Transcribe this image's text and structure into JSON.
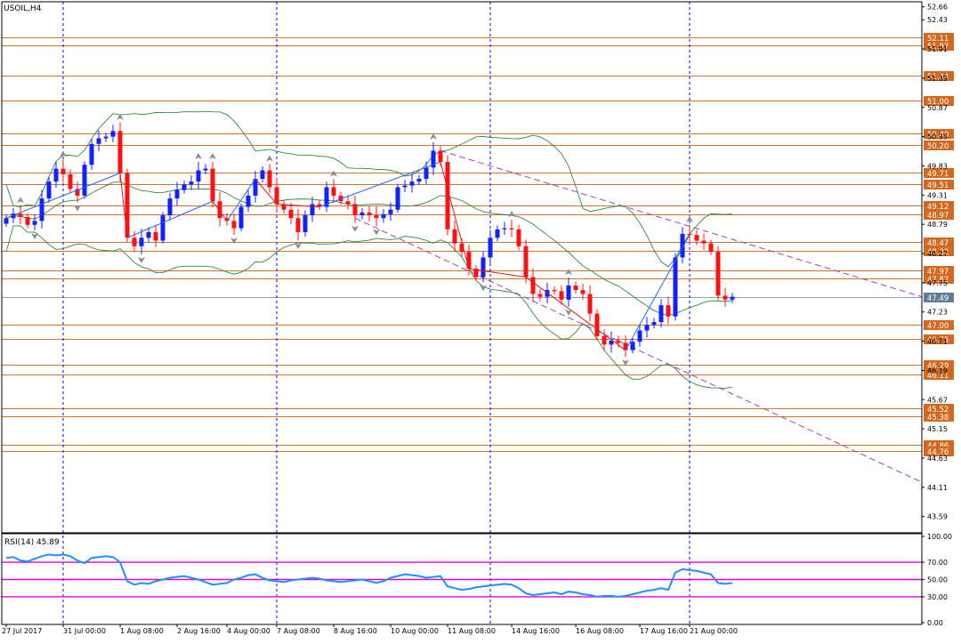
{
  "symbol_label": "USOIL,H4",
  "indicator_label": "RSI(14) 45.89",
  "colors": {
    "background": "#ffffff",
    "grid_separator": "#0000ff",
    "up_candle": "#1020ff",
    "down_candle": "#ff1010",
    "level_line": "#c8763a",
    "level_tag_bg": "#d2691e",
    "bollinger": "#2e8b3e",
    "zigzag_up": "#1e64ff",
    "zigzag_down": "#e01818",
    "trend_channel": "#a040c0",
    "current_price": "#8aa2b4",
    "rsi_line": "#1e90ff",
    "rsi_levels": "#e000e0",
    "fractal": "#8a8a8a"
  },
  "chart_data": [
    {
      "type": "candlestick",
      "title": "USOIL,H4",
      "ylim": [
        43.3,
        52.75
      ],
      "price_scale_ticks": [
        "52.66",
        "52.43",
        "51.91",
        "51.39",
        "50.87",
        "50.35",
        "49.83",
        "49.31",
        "48.79",
        "48.27",
        "47.75",
        "47.23",
        "46.71",
        "46.19",
        "45.67",
        "45.15",
        "44.63",
        "44.11",
        "43.59"
      ],
      "x_tick_labels": [
        "27 Jul 2017",
        "31 Jul 00:00",
        "1 Aug 08:00",
        "2 Aug 16:00",
        "4 Aug 00:00",
        "7 Aug 08:00",
        "8 Aug 16:00",
        "10 Aug 00:00",
        "11 Aug 08:00",
        "14 Aug 16:00",
        "16 Aug 08:00",
        "17 Aug 16:00",
        "21 Aug 00:00"
      ],
      "day_separators_after_tick": [
        "31 Jul 00:00",
        "4 Aug 00:00",
        "10 Aug 00:00",
        "17 Aug 16:00"
      ],
      "horizontal_levels": [
        52.11,
        51.97,
        51.44,
        51.0,
        50.4,
        50.2,
        49.71,
        49.51,
        49.12,
        48.97,
        48.47,
        48.32,
        47.97,
        47.82,
        47.0,
        46.75,
        46.29,
        46.11,
        45.52,
        45.38,
        44.86,
        44.76
      ],
      "current_price": 47.49,
      "closes": [
        48.9,
        48.98,
        48.92,
        48.78,
        48.85,
        49.25,
        49.55,
        49.78,
        49.68,
        49.42,
        49.3,
        49.85,
        50.22,
        50.32,
        50.35,
        50.45,
        49.7,
        48.55,
        48.4,
        48.55,
        48.65,
        48.5,
        48.95,
        49.25,
        49.4,
        49.5,
        49.55,
        49.75,
        49.78,
        49.2,
        48.9,
        48.85,
        48.72,
        49.1,
        49.3,
        49.6,
        49.75,
        49.45,
        49.15,
        49.05,
        48.9,
        48.65,
        48.95,
        49.15,
        49.1,
        49.45,
        49.3,
        49.2,
        49.15,
        48.95,
        49.0,
        48.95,
        48.9,
        48.97,
        49.05,
        49.45,
        49.48,
        49.55,
        49.6,
        49.8,
        50.1,
        49.9,
        48.7,
        48.45,
        48.3,
        48.0,
        47.85,
        48.2,
        48.55,
        48.7,
        48.72,
        48.7,
        48.4,
        47.85,
        47.55,
        47.5,
        47.62,
        47.6,
        47.45,
        47.7,
        47.62,
        47.55,
        47.2,
        46.8,
        46.65,
        46.72,
        46.68,
        46.55,
        46.7,
        46.9,
        47.0,
        47.05,
        47.35,
        47.15,
        48.2,
        48.62,
        48.6,
        48.5,
        48.45,
        48.3,
        47.52,
        47.45,
        47.5
      ],
      "notes": "Close values estimated from the price axis; 103 H4 candles with OHLC generated around these closes"
    },
    {
      "type": "line",
      "title": "RSI(14)",
      "current_value": 45.89,
      "ylim": [
        0,
        100
      ],
      "y_tick_labels": [
        "100.00",
        "70.00",
        "50.00",
        "30.00",
        "0.00"
      ],
      "levels": [
        70,
        50,
        30
      ],
      "values": [
        75,
        76,
        72,
        71,
        74,
        77,
        79,
        78,
        79,
        77,
        72,
        69,
        75,
        76,
        77,
        76,
        70,
        48,
        44,
        46,
        45,
        48,
        50,
        52,
        53,
        54,
        52,
        50,
        47,
        44,
        45,
        46,
        50,
        52,
        55,
        56,
        52,
        49,
        48,
        47,
        49,
        50,
        51,
        52,
        51,
        49,
        48,
        47,
        48,
        49,
        50,
        48,
        46,
        48,
        52,
        54,
        56,
        55,
        54,
        52,
        53,
        54,
        42,
        40,
        38,
        39,
        41,
        42,
        43,
        44,
        45,
        44,
        40,
        34,
        32,
        33,
        34,
        35,
        33,
        36,
        35,
        33,
        32,
        30,
        31,
        31,
        30,
        31,
        33,
        35,
        37,
        38,
        40,
        38,
        58,
        62,
        61,
        60,
        58,
        56,
        46,
        45,
        46
      ]
    }
  ],
  "fractal_annotations": "grey arrow markers above highs and below lows"
}
